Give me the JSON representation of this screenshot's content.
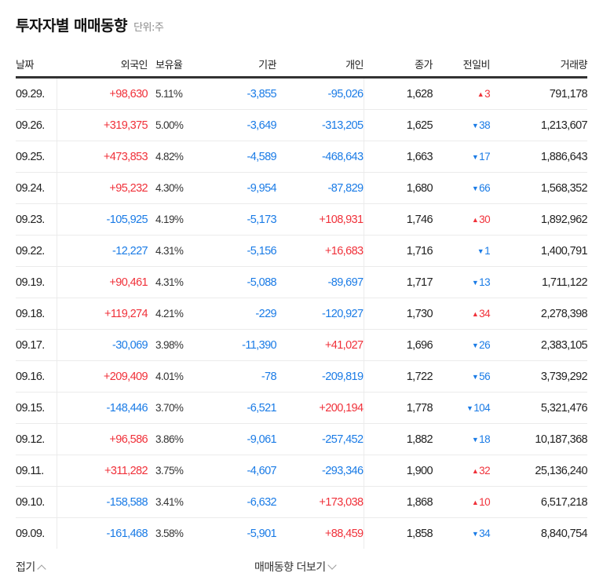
{
  "header": {
    "title": "투자자별 매매동향",
    "unit": "단위:주"
  },
  "columns": {
    "date": "날짜",
    "foreign": "외국인",
    "ratio": "보유율",
    "institution": "기관",
    "individual": "개인",
    "close": "종가",
    "change": "전일비",
    "volume": "거래량"
  },
  "colors": {
    "up": "#f0313a",
    "down": "#1a7be6"
  },
  "rows": [
    {
      "date": "09.29.",
      "foreign": "+98,630",
      "ratio": "5.11%",
      "institution": "-3,855",
      "individual": "-95,026",
      "close": "1,628",
      "dir": "up",
      "change": "3",
      "volume": "791,178"
    },
    {
      "date": "09.26.",
      "foreign": "+319,375",
      "ratio": "5.00%",
      "institution": "-3,649",
      "individual": "-313,205",
      "close": "1,625",
      "dir": "down",
      "change": "38",
      "volume": "1,213,607"
    },
    {
      "date": "09.25.",
      "foreign": "+473,853",
      "ratio": "4.82%",
      "institution": "-4,589",
      "individual": "-468,643",
      "close": "1,663",
      "dir": "down",
      "change": "17",
      "volume": "1,886,643"
    },
    {
      "date": "09.24.",
      "foreign": "+95,232",
      "ratio": "4.30%",
      "institution": "-9,954",
      "individual": "-87,829",
      "close": "1,680",
      "dir": "down",
      "change": "66",
      "volume": "1,568,352"
    },
    {
      "date": "09.23.",
      "foreign": "-105,925",
      "ratio": "4.19%",
      "institution": "-5,173",
      "individual": "+108,931",
      "close": "1,746",
      "dir": "up",
      "change": "30",
      "volume": "1,892,962"
    },
    {
      "date": "09.22.",
      "foreign": "-12,227",
      "ratio": "4.31%",
      "institution": "-5,156",
      "individual": "+16,683",
      "close": "1,716",
      "dir": "down",
      "change": "1",
      "volume": "1,400,791"
    },
    {
      "date": "09.19.",
      "foreign": "+90,461",
      "ratio": "4.31%",
      "institution": "-5,088",
      "individual": "-89,697",
      "close": "1,717",
      "dir": "down",
      "change": "13",
      "volume": "1,711,122"
    },
    {
      "date": "09.18.",
      "foreign": "+119,274",
      "ratio": "4.21%",
      "institution": "-229",
      "individual": "-120,927",
      "close": "1,730",
      "dir": "up",
      "change": "34",
      "volume": "2,278,398"
    },
    {
      "date": "09.17.",
      "foreign": "-30,069",
      "ratio": "3.98%",
      "institution": "-11,390",
      "individual": "+41,027",
      "close": "1,696",
      "dir": "down",
      "change": "26",
      "volume": "2,383,105"
    },
    {
      "date": "09.16.",
      "foreign": "+209,409",
      "ratio": "4.01%",
      "institution": "-78",
      "individual": "-209,819",
      "close": "1,722",
      "dir": "down",
      "change": "56",
      "volume": "3,739,292"
    },
    {
      "date": "09.15.",
      "foreign": "-148,446",
      "ratio": "3.70%",
      "institution": "-6,521",
      "individual": "+200,194",
      "close": "1,778",
      "dir": "down",
      "change": "104",
      "volume": "5,321,476"
    },
    {
      "date": "09.12.",
      "foreign": "+96,586",
      "ratio": "3.86%",
      "institution": "-9,061",
      "individual": "-257,452",
      "close": "1,882",
      "dir": "down",
      "change": "18",
      "volume": "10,187,368"
    },
    {
      "date": "09.11.",
      "foreign": "+311,282",
      "ratio": "3.75%",
      "institution": "-4,607",
      "individual": "-293,346",
      "close": "1,900",
      "dir": "up",
      "change": "32",
      "volume": "25,136,240"
    },
    {
      "date": "09.10.",
      "foreign": "-158,588",
      "ratio": "3.41%",
      "institution": "-6,632",
      "individual": "+173,038",
      "close": "1,868",
      "dir": "up",
      "change": "10",
      "volume": "6,517,218"
    },
    {
      "date": "09.09.",
      "foreign": "-161,468",
      "ratio": "3.58%",
      "institution": "-5,901",
      "individual": "+88,459",
      "close": "1,858",
      "dir": "down",
      "change": "34",
      "volume": "8,840,754"
    }
  ],
  "footer": {
    "collapse": "접기",
    "more": "매매동향 더보기"
  }
}
